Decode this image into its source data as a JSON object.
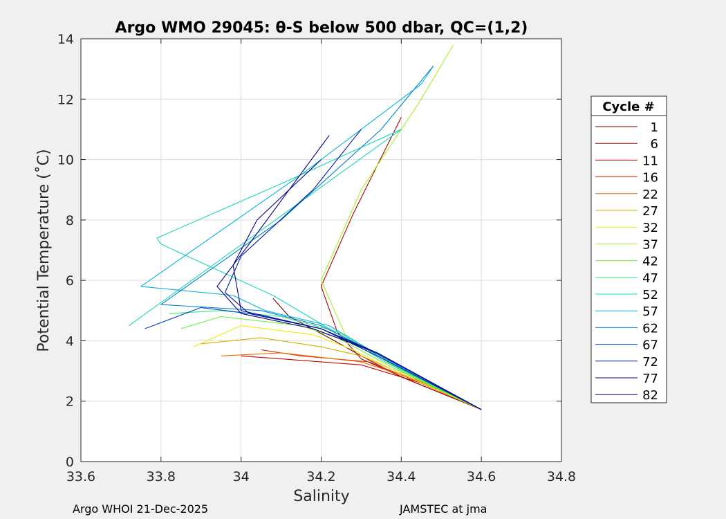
{
  "chart_data": {
    "type": "line",
    "title": "Argo WMO 29045: θ-S below 500 dbar,  QC=(1,2)",
    "xlabel": "Salinity",
    "ylabel": "Potential Temperature (˚C)",
    "xlim": [
      33.6,
      34.8
    ],
    "ylim": [
      0,
      14
    ],
    "xticks": [
      "33.6",
      "33.8",
      "34",
      "34.2",
      "34.4",
      "34.6",
      "34.8"
    ],
    "yticks": [
      "0",
      "2",
      "4",
      "6",
      "8",
      "10",
      "12",
      "14"
    ],
    "grid": true,
    "legend": {
      "title": "Cycle #",
      "position": "right",
      "entries": [
        "1",
        "6",
        "11",
        "16",
        "22",
        "27",
        "32",
        "37",
        "42",
        "47",
        "52",
        "57",
        "62",
        "67",
        "72",
        "77",
        "82"
      ],
      "colors": [
        "#800000",
        "#a50000",
        "#c80000",
        "#e62000",
        "#e86a00",
        "#d8a800",
        "#ecec10",
        "#a6f026",
        "#6ef03a",
        "#32e680",
        "#16d8b8",
        "#08b4d8",
        "#0080d0",
        "#0048c8",
        "#0018a8",
        "#000090",
        "#000080"
      ]
    },
    "series": [
      {
        "name": "1",
        "color": "#800000",
        "x": [
          34.6,
          34.4,
          34.3,
          34.22,
          34.12,
          34.08
        ],
        "y": [
          1.72,
          2.8,
          3.5,
          4.1,
          4.8,
          5.4
        ]
      },
      {
        "name": "6",
        "color": "#a50000",
        "x": [
          34.6,
          34.42,
          34.3,
          34.24,
          34.2,
          34.28,
          34.4
        ],
        "y": [
          1.72,
          2.7,
          3.4,
          4.3,
          5.8,
          8.2,
          11.4
        ]
      },
      {
        "name": "11",
        "color": "#c80000",
        "x": [
          34.6,
          34.45,
          34.3,
          34.1,
          34.0
        ],
        "y": [
          1.72,
          2.6,
          3.2,
          3.4,
          3.5
        ]
      },
      {
        "name": "16",
        "color": "#e62000",
        "x": [
          34.6,
          34.44,
          34.32,
          34.15,
          34.05
        ],
        "y": [
          1.72,
          2.65,
          3.3,
          3.5,
          3.7
        ]
      },
      {
        "name": "22",
        "color": "#e86a00",
        "x": [
          34.6,
          34.44,
          34.3,
          34.1,
          33.95
        ],
        "y": [
          1.72,
          2.7,
          3.3,
          3.6,
          3.5
        ]
      },
      {
        "name": "27",
        "color": "#d8a800",
        "x": [
          34.6,
          34.42,
          34.3,
          34.2,
          34.05,
          33.9
        ],
        "y": [
          1.72,
          2.8,
          3.5,
          3.8,
          4.1,
          3.9
        ]
      },
      {
        "name": "32",
        "color": "#ecec10",
        "x": [
          34.6,
          34.4,
          34.28,
          34.18,
          34.0,
          33.88
        ],
        "y": [
          1.72,
          2.9,
          3.7,
          4.2,
          4.5,
          3.8
        ]
      },
      {
        "name": "37",
        "color": "#a6f026",
        "x": [
          34.6,
          34.4,
          34.26,
          34.2,
          34.3,
          34.45,
          34.53
        ],
        "y": [
          1.72,
          3.0,
          4.2,
          6.0,
          9.0,
          12.0,
          13.8
        ]
      },
      {
        "name": "42",
        "color": "#6ef03a",
        "x": [
          34.6,
          34.38,
          34.24,
          34.15,
          33.95,
          33.85
        ],
        "y": [
          1.72,
          3.1,
          4.1,
          4.5,
          4.8,
          4.4
        ]
      },
      {
        "name": "47",
        "color": "#32e680",
        "x": [
          34.6,
          34.38,
          34.24,
          34.1,
          33.95,
          33.82
        ],
        "y": [
          1.72,
          3.2,
          4.3,
          4.8,
          5.0,
          4.9
        ]
      },
      {
        "name": "52",
        "color": "#16d8b8",
        "x": [
          34.6,
          34.36,
          34.22,
          34.08,
          33.8,
          33.79,
          34.1,
          34.4,
          33.72
        ],
        "y": [
          1.72,
          3.3,
          4.4,
          5.5,
          7.2,
          7.4,
          9.2,
          11.0,
          4.5
        ]
      },
      {
        "name": "57",
        "color": "#08b4d8",
        "x": [
          34.6,
          34.36,
          34.22,
          34.06,
          33.98,
          33.75,
          34.15,
          34.45,
          34.48
        ],
        "y": [
          1.72,
          3.4,
          4.5,
          5.0,
          5.5,
          5.8,
          9.5,
          12.5,
          13.1
        ]
      },
      {
        "name": "62",
        "color": "#0080d0",
        "x": [
          34.6,
          34.35,
          34.2,
          34.05,
          33.8,
          34.1,
          34.35,
          34.48
        ],
        "y": [
          1.72,
          3.5,
          4.5,
          5.0,
          5.2,
          8.0,
          11.0,
          13.1
        ]
      },
      {
        "name": "67",
        "color": "#0048c8",
        "x": [
          34.6,
          34.35,
          34.2,
          34.02,
          33.9,
          33.76
        ],
        "y": [
          1.72,
          3.5,
          4.4,
          4.9,
          5.1,
          4.4
        ]
      },
      {
        "name": "72",
        "color": "#0018a8",
        "x": [
          34.6,
          34.34,
          34.2,
          34.02,
          33.96,
          34.0,
          34.18,
          34.3
        ],
        "y": [
          1.72,
          3.5,
          4.4,
          4.9,
          5.6,
          6.8,
          9.0,
          11.0
        ]
      },
      {
        "name": "77",
        "color": "#000090",
        "x": [
          34.6,
          34.34,
          34.2,
          34.0,
          33.98,
          34.04,
          34.2
        ],
        "y": [
          1.72,
          3.6,
          4.4,
          5.0,
          6.5,
          8.0,
          10.0
        ]
      },
      {
        "name": "82",
        "color": "#000080",
        "x": [
          34.6,
          34.34,
          34.18,
          34.0,
          33.94,
          34.02,
          34.22
        ],
        "y": [
          1.72,
          3.6,
          4.4,
          4.9,
          5.8,
          7.2,
          10.8
        ]
      }
    ]
  },
  "footer": {
    "left": "Argo WHOI 21-Dec-2025",
    "right": "JAMSTEC at jma"
  }
}
